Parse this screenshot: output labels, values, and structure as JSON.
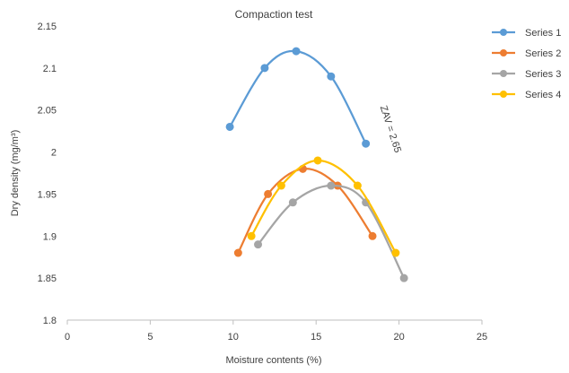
{
  "chart_data": {
    "type": "scatter",
    "title": "Compaction test",
    "xlabel": "Moisture contents (%)",
    "ylabel": "Dry density (mg/m³)",
    "xlim": [
      0,
      25
    ],
    "ylim": [
      1.8,
      2.15
    ],
    "x_ticks": [
      "0",
      "5",
      "10",
      "15",
      "20",
      "25"
    ],
    "y_ticks": [
      "1.8",
      "1.85",
      "1.9",
      "1.95",
      "2",
      "2.05",
      "2.1",
      "2.15"
    ],
    "grid": false,
    "legend": {
      "position": "right",
      "entries": [
        "Series 1",
        "Series 2",
        "Series 3",
        "Series 4"
      ]
    },
    "annotation": "ZAV = 2.65",
    "series": [
      {
        "name": "Series 1",
        "color": "#5b9bd5",
        "points": [
          [
            9.8,
            2.03
          ],
          [
            11.9,
            2.1
          ],
          [
            13.8,
            2.12
          ],
          [
            15.9,
            2.09
          ],
          [
            18.0,
            2.01
          ]
        ]
      },
      {
        "name": "Series 2",
        "color": "#ed7d31",
        "points": [
          [
            10.3,
            1.88
          ],
          [
            12.1,
            1.95
          ],
          [
            14.2,
            1.98
          ],
          [
            16.3,
            1.96
          ],
          [
            18.4,
            1.9
          ]
        ]
      },
      {
        "name": "Series 3",
        "color": "#a5a5a5",
        "points": [
          [
            11.5,
            1.89
          ],
          [
            13.6,
            1.94
          ],
          [
            15.9,
            1.96
          ],
          [
            18.0,
            1.94
          ],
          [
            20.3,
            1.85
          ]
        ]
      },
      {
        "name": "Series 4",
        "color": "#ffc000",
        "points": [
          [
            11.1,
            1.9
          ],
          [
            12.9,
            1.96
          ],
          [
            15.1,
            1.99
          ],
          [
            17.5,
            1.96
          ],
          [
            19.8,
            1.88
          ]
        ]
      }
    ]
  }
}
